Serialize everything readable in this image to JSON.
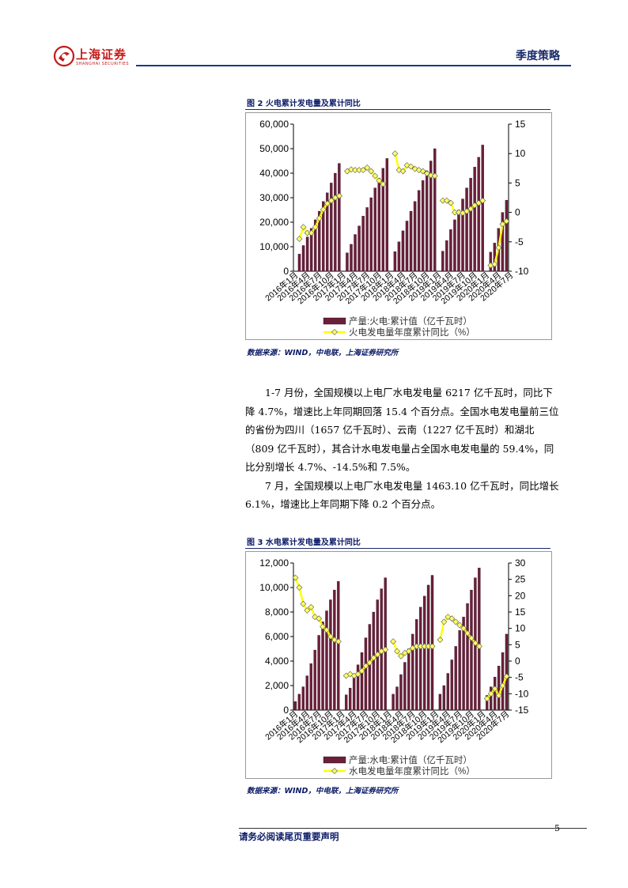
{
  "header": {
    "logo_text": "上海证券",
    "logo_sub": "SHANGHAI SECURITIES",
    "section_title": "季度策略"
  },
  "figure2": {
    "title": "图 2 火电累计发电量及累计同比",
    "source": "数据来源：WIND，中电联，上海证券研究所"
  },
  "figure3": {
    "title": "图 3 水电累计发电量及累计同比",
    "source": "数据来源：WIND，中电联，上海证券研究所"
  },
  "paragraphs": [
    "1-7 月份，全国规模以上电厂水电发电量 6217 亿千瓦时，同比下降 4.7%，增速比上年同期回落 15.4 个百分点。全国水电发电量前三位的省份为四川（1657 亿千瓦时）、云南（1227 亿千瓦时）和湖北（809 亿千瓦时），其合计水电发电量占全国水电发电量的 59.4%，同比分别增长 4.7%、-14.5%和 7.5%。",
    "7 月，全国规模以上电厂水电发电量 1463.10 亿千瓦时，同比增长 6.1%，增速比上年同期下降 0.2 个百分点。"
  ],
  "footer": {
    "note": "请务必阅读尾页重要声明",
    "page_number": "5"
  },
  "chart_data": [
    {
      "type": "bar",
      "x_tick_labels": [
        "2016年1月",
        "2016年4月",
        "2016年7月",
        "2016年10月",
        "2017年1月",
        "2017年4月",
        "2017年7月",
        "2017年10月",
        "2018年1月",
        "2018年4月",
        "2018年7月",
        "2018年10月",
        "2019年1月",
        "2019年4月",
        "2019年7月",
        "2019年10月",
        "2020年1月",
        "2020年4月",
        "2020年7月"
      ],
      "left_axis": {
        "ylim": [
          0,
          60000
        ],
        "ticks": [
          "0",
          "10,000",
          "20,000",
          "30,000",
          "40,000",
          "50,000",
          "60,000"
        ]
      },
      "right_axis": {
        "ylim": [
          -10,
          15
        ],
        "ticks": [
          "-10",
          "-5",
          "0",
          "5",
          "10",
          "15"
        ]
      },
      "series": [
        {
          "name": "产量:火电:累计值（亿千瓦时）",
          "kind": "bar",
          "axis": "left",
          "color": "#6b1f3a",
          "values": [
            null,
            7000,
            10500,
            14000,
            17500,
            21000,
            24500,
            28500,
            32000,
            36000,
            40000,
            44000,
            null,
            7500,
            11000,
            15000,
            18500,
            22500,
            26000,
            30000,
            34000,
            38000,
            42000,
            46000,
            null,
            8000,
            12000,
            16500,
            20500,
            24500,
            28500,
            33000,
            37000,
            41000,
            45000,
            50000,
            null,
            8200,
            12500,
            17000,
            21000,
            25000,
            29500,
            34000,
            38000,
            42500,
            46500,
            51500,
            null,
            7800,
            11500,
            17500,
            24000,
            29000
          ]
        },
        {
          "name": "火电发电量年度累计同比（%）",
          "kind": "line",
          "axis": "right",
          "color": "#ffff00",
          "values": [
            null,
            -4.5,
            -2.5,
            -3.5,
            -3.5,
            -2.5,
            -1,
            0.5,
            1.5,
            2,
            2.5,
            2.8,
            null,
            7,
            7.3,
            7.2,
            7.2,
            7.2,
            7.6,
            7.0,
            6.2,
            5.4,
            4.8,
            null,
            null,
            10,
            7.2,
            7,
            8,
            7.8,
            7.4,
            7.2,
            7.0,
            6.6,
            6.3,
            6.2,
            null,
            2,
            2,
            1.6,
            0,
            0,
            -0.1,
            0.2,
            0.6,
            1.2,
            1.6,
            2.0,
            null,
            -9,
            -8.8,
            -6,
            -2,
            -1.5
          ]
        }
      ]
    },
    {
      "type": "bar",
      "x_tick_labels": [
        "2016年1月",
        "2016年4月",
        "2016年7月",
        "2016年10月",
        "2017年1月",
        "2017年4月",
        "2017年7月",
        "2017年10月",
        "2018年1月",
        "2018年4月",
        "2018年7月",
        "2018年10月",
        "2019年1月",
        "2019年4月",
        "2019年7月",
        "2019年10月",
        "2020年1月",
        "2020年4月",
        "2020年7月"
      ],
      "left_axis": {
        "ylim": [
          0,
          12000
        ],
        "ticks": [
          "0",
          "2,000",
          "4,000",
          "6,000",
          "8,000",
          "10,000",
          "12,000"
        ]
      },
      "right_axis": {
        "ylim": [
          -15,
          30
        ],
        "ticks": [
          "-15",
          "-10",
          "-5",
          "0",
          "5",
          "10",
          "15",
          "20",
          "25",
          "30"
        ]
      },
      "series": [
        {
          "name": "产量:水电:累计值（亿千瓦时）",
          "kind": "bar",
          "axis": "left",
          "color": "#6b1f3a",
          "values": [
            700,
            1300,
            1900,
            2800,
            3800,
            4900,
            6100,
            7200,
            8100,
            9000,
            9800,
            10500,
            null,
            1250,
            1800,
            2700,
            3700,
            4700,
            5900,
            7000,
            8000,
            9000,
            9900,
            10800,
            null,
            1300,
            1900,
            2900,
            3900,
            5000,
            6200,
            7400,
            8400,
            9300,
            10200,
            11000,
            null,
            1300,
            2000,
            3000,
            4100,
            5200,
            6500,
            7600,
            8700,
            9800,
            10800,
            11600,
            null,
            1200,
            1900,
            2700,
            3600,
            4700,
            6200
          ]
        },
        {
          "name": "水电发电量年度累计同比（%）",
          "kind": "line",
          "axis": "right",
          "color": "#ffff00",
          "values": [
            25.5,
            22.5,
            17.5,
            15.5,
            16.5,
            13.5,
            13,
            10.5,
            9.5,
            7.5,
            6.5,
            6,
            null,
            -4.5,
            -4,
            -4.5,
            -4,
            -3,
            -1.5,
            -0.5,
            1,
            2,
            3,
            3.5,
            null,
            6,
            3,
            1.5,
            2.5,
            3,
            4,
            4.5,
            4.5,
            4.5,
            4.5,
            4.5,
            null,
            6.5,
            12,
            13.5,
            13,
            12,
            11,
            10,
            8.5,
            7,
            5.5,
            4.5,
            null,
            -11.5,
            -10,
            -8.5,
            -10.5,
            -7.5,
            -4.7
          ]
        }
      ]
    }
  ]
}
